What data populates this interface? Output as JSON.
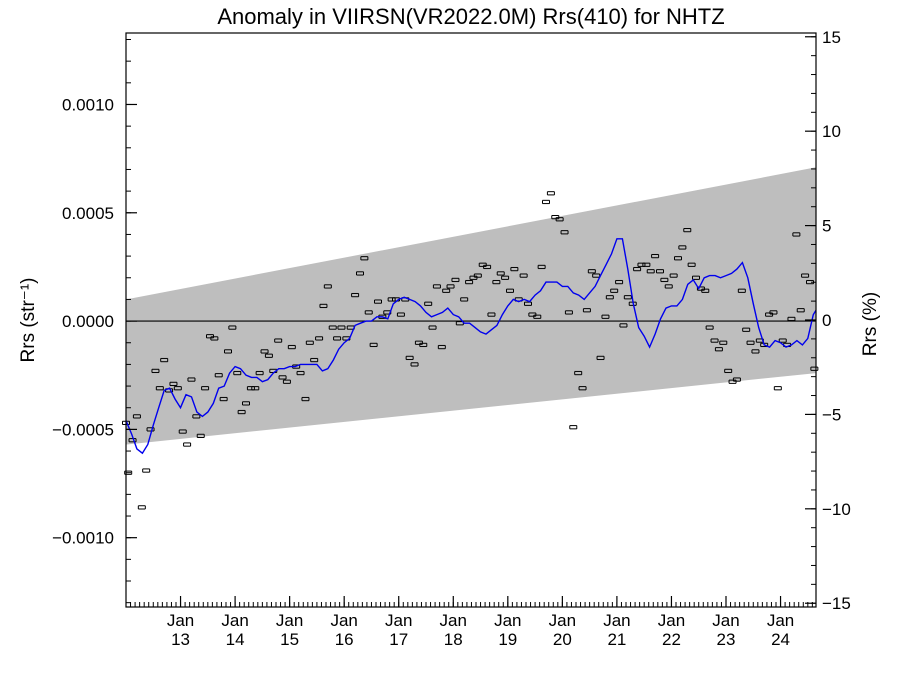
{
  "chart_data": {
    "type": "scatter",
    "title": "Anomaly in VIIRSN(VR2022.0M) Rrs(410) for NHTZ",
    "ylabel_left": "Rrs (str⁻¹)",
    "ylabel_right": "Rrs (%)",
    "xlabel": "",
    "ylim": [
      -0.00132,
      0.00133
    ],
    "ylim_right": [
      -15.2,
      15.2
    ],
    "xlim": [
      2012.0,
      2024.65
    ],
    "left_ticks": [
      {
        "v": 0.001,
        "label": "0.0010"
      },
      {
        "v": 0.0005,
        "label": "0.0005"
      },
      {
        "v": 0.0,
        "label": "0.0000"
      },
      {
        "v": -0.0005,
        "label": "−0.0005"
      },
      {
        "v": -0.001,
        "label": "−0.0010"
      }
    ],
    "right_ticks": [
      {
        "v": 15,
        "label": "15"
      },
      {
        "v": 10,
        "label": "10"
      },
      {
        "v": 5,
        "label": "5"
      },
      {
        "v": 0,
        "label": "0"
      },
      {
        "v": -5,
        "label": "−5"
      },
      {
        "v": -10,
        "label": "−10"
      },
      {
        "v": -15,
        "label": "−15"
      }
    ],
    "x_ticks": [
      {
        "v": 2013.0,
        "label1": "Jan",
        "label2": "13"
      },
      {
        "v": 2014.0,
        "label1": "Jan",
        "label2": "14"
      },
      {
        "v": 2015.0,
        "label1": "Jan",
        "label2": "15"
      },
      {
        "v": 2016.0,
        "label1": "Jan",
        "label2": "16"
      },
      {
        "v": 2017.0,
        "label1": "Jan",
        "label2": "17"
      },
      {
        "v": 2018.0,
        "label1": "Jan",
        "label2": "18"
      },
      {
        "v": 2019.0,
        "label1": "Jan",
        "label2": "19"
      },
      {
        "v": 2020.0,
        "label1": "Jan",
        "label2": "20"
      },
      {
        "v": 2021.0,
        "label1": "Jan",
        "label2": "21"
      },
      {
        "v": 2022.0,
        "label1": "Jan",
        "label2": "22"
      },
      {
        "v": 2023.0,
        "label1": "Jan",
        "label2": "23"
      },
      {
        "v": 2024.0,
        "label1": "Jan",
        "label2": "24"
      }
    ],
    "band": {
      "x": [
        2012.0,
        2024.65
      ],
      "upper": [
        0.0001,
        0.00071
      ],
      "lower": [
        -0.00057,
        -0.00024
      ],
      "color": "#bebebe"
    },
    "zero_line": 0.0,
    "colors": {
      "running_mean": "#0000ee",
      "points": "#000000"
    },
    "points": {
      "x": [
        2012.0,
        2012.04,
        2012.12,
        2012.2,
        2012.29,
        2012.37,
        2012.45,
        2012.54,
        2012.62,
        2012.7,
        2012.79,
        2012.87,
        2012.95,
        2013.04,
        2013.12,
        2013.2,
        2013.29,
        2013.37,
        2013.45,
        2013.54,
        2013.62,
        2013.7,
        2013.79,
        2013.87,
        2013.95,
        2014.04,
        2014.12,
        2014.2,
        2014.29,
        2014.37,
        2014.45,
        2014.54,
        2014.62,
        2014.7,
        2014.79,
        2014.87,
        2014.95,
        2015.04,
        2015.12,
        2015.2,
        2015.29,
        2015.37,
        2015.45,
        2015.54,
        2015.62,
        2015.7,
        2015.79,
        2015.87,
        2015.95,
        2016.04,
        2016.12,
        2016.2,
        2016.29,
        2016.37,
        2016.45,
        2016.54,
        2016.62,
        2016.7,
        2016.79,
        2016.87,
        2016.95,
        2017.04,
        2017.12,
        2017.2,
        2017.29,
        2017.37,
        2017.45,
        2017.54,
        2017.62,
        2017.7,
        2017.79,
        2017.87,
        2017.95,
        2018.04,
        2018.12,
        2018.2,
        2018.29,
        2018.37,
        2018.45,
        2018.54,
        2018.62,
        2018.7,
        2018.79,
        2018.87,
        2018.95,
        2019.04,
        2019.12,
        2019.2,
        2019.29,
        2019.37,
        2019.45,
        2019.54,
        2019.62,
        2019.7,
        2019.79,
        2019.87,
        2019.95,
        2020.04,
        2020.12,
        2020.2,
        2020.29,
        2020.37,
        2020.45,
        2020.54,
        2020.62,
        2020.7,
        2020.79,
        2020.87,
        2020.95,
        2021.04,
        2021.12,
        2021.2,
        2021.29,
        2021.37,
        2021.45,
        2021.54,
        2021.62,
        2021.7,
        2021.79,
        2021.87,
        2021.95,
        2022.04,
        2022.12,
        2022.2,
        2022.29,
        2022.37,
        2022.45,
        2022.54,
        2022.62,
        2022.7,
        2022.79,
        2022.87,
        2022.95,
        2023.04,
        2023.12,
        2023.2,
        2023.29,
        2023.37,
        2023.45,
        2023.54,
        2023.62,
        2023.7,
        2023.79,
        2023.87,
        2023.95,
        2024.04,
        2024.12,
        2024.2,
        2024.29,
        2024.37,
        2024.45,
        2024.54,
        2024.62
      ],
      "y": [
        -0.00047,
        -0.0007,
        -0.00055,
        -0.00044,
        -0.00086,
        -0.00069,
        -0.0005,
        -0.00023,
        -0.00031,
        -0.00018,
        -0.00032,
        -0.00029,
        -0.00031,
        -0.00051,
        -0.00057,
        -0.00027,
        -0.00044,
        -0.00053,
        -0.00031,
        -7e-05,
        -8e-05,
        -0.00025,
        -0.00036,
        -0.00014,
        -3e-05,
        -0.00024,
        -0.00042,
        -0.00038,
        -0.00031,
        -0.00031,
        -0.00024,
        -0.00014,
        -0.00016,
        -0.00023,
        -9e-05,
        -0.00026,
        -0.00028,
        -0.00012,
        -0.00021,
        -0.00024,
        -0.00036,
        -0.0001,
        -0.00018,
        -8e-05,
        7e-05,
        0.00016,
        -3e-05,
        -8e-05,
        -3e-05,
        -8e-05,
        -3e-05,
        0.00012,
        0.00022,
        0.00029,
        4e-05,
        -0.00011,
        9e-05,
        2e-05,
        4e-05,
        0.0001,
        0.0001,
        3e-05,
        0.0001,
        -0.00017,
        -0.0002,
        -0.0001,
        -0.00011,
        8e-05,
        -3e-05,
        0.00016,
        -0.00012,
        0.00014,
        0.00016,
        0.00019,
        -1e-05,
        0.0001,
        0.00018,
        0.0002,
        0.00021,
        0.00026,
        0.00025,
        3e-05,
        0.00018,
        0.00022,
        0.0002,
        0.00014,
        0.00024,
        0.0001,
        0.00021,
        8e-05,
        3e-05,
        2e-05,
        0.00025,
        0.00055,
        0.00059,
        0.00048,
        0.00047,
        0.00041,
        4e-05,
        -0.00049,
        -0.00024,
        -0.00031,
        5e-05,
        0.00023,
        0.00021,
        -0.00017,
        2e-05,
        0.00011,
        0.00014,
        0.00018,
        -2e-05,
        0.00011,
        8e-05,
        0.00024,
        0.00026,
        0.00026,
        0.00023,
        0.0003,
        0.00023,
        0.00019,
        0.00016,
        0.00021,
        0.00029,
        0.00034,
        0.00042,
        0.00026,
        0.0002,
        0.00015,
        0.00014,
        -3e-05,
        -9e-05,
        -0.00013,
        -0.0001,
        -0.00023,
        -0.00028,
        -0.00027,
        0.00014,
        -4e-05,
        -0.0001,
        -0.00014,
        -9e-05,
        -0.00011,
        3e-05,
        4e-05,
        -0.00031,
        -9e-05,
        -0.00011,
        1e-05,
        0.0004,
        5e-05,
        0.00021,
        0.00018,
        -0.00022
      ],
      "err": 7.5e-06
    },
    "running_mean": {
      "x": [
        2012.0,
        2012.1,
        2012.2,
        2012.3,
        2012.4,
        2012.5,
        2012.6,
        2012.7,
        2012.8,
        2012.9,
        2013.0,
        2013.1,
        2013.2,
        2013.3,
        2013.4,
        2013.5,
        2013.6,
        2013.7,
        2013.8,
        2013.9,
        2014.0,
        2014.1,
        2014.2,
        2014.3,
        2014.4,
        2014.5,
        2014.6,
        2014.7,
        2014.8,
        2014.9,
        2015.0,
        2015.1,
        2015.2,
        2015.3,
        2015.4,
        2015.5,
        2015.6,
        2015.7,
        2015.8,
        2015.9,
        2016.0,
        2016.1,
        2016.2,
        2016.3,
        2016.4,
        2016.5,
        2016.6,
        2016.7,
        2016.8,
        2016.9,
        2017.0,
        2017.1,
        2017.2,
        2017.3,
        2017.4,
        2017.5,
        2017.6,
        2017.7,
        2017.8,
        2017.9,
        2018.0,
        2018.1,
        2018.2,
        2018.3,
        2018.4,
        2018.5,
        2018.6,
        2018.7,
        2018.8,
        2018.9,
        2019.0,
        2019.1,
        2019.2,
        2019.3,
        2019.4,
        2019.5,
        2019.6,
        2019.7,
        2019.8,
        2019.9,
        2020.0,
        2020.1,
        2020.2,
        2020.3,
        2020.4,
        2020.5,
        2020.6,
        2020.7,
        2020.8,
        2020.9,
        2021.0,
        2021.1,
        2021.2,
        2021.3,
        2021.4,
        2021.5,
        2021.6,
        2021.7,
        2021.8,
        2021.9,
        2022.0,
        2022.1,
        2022.2,
        2022.3,
        2022.4,
        2022.5,
        2022.6,
        2022.7,
        2022.8,
        2022.9,
        2023.0,
        2023.1,
        2023.2,
        2023.3,
        2023.4,
        2023.5,
        2023.6,
        2023.7,
        2023.8,
        2023.9,
        2024.0,
        2024.1,
        2024.2,
        2024.3,
        2024.4,
        2024.5,
        2024.6,
        2024.65
      ],
      "y": [
        -0.00046,
        -0.00052,
        -0.00059,
        -0.00061,
        -0.00057,
        -0.00048,
        -0.0004,
        -0.00032,
        -0.00031,
        -0.00036,
        -0.0004,
        -0.00034,
        -0.00035,
        -0.00042,
        -0.00044,
        -0.00042,
        -0.00038,
        -0.00031,
        -0.0003,
        -0.00024,
        -0.00021,
        -0.00022,
        -0.00025,
        -0.00026,
        -0.00026,
        -0.00028,
        -0.00027,
        -0.00024,
        -0.00022,
        -0.00022,
        -0.00021,
        -0.00021,
        -0.0002,
        -0.0002,
        -0.0002,
        -0.0002,
        -0.00023,
        -0.00022,
        -0.00018,
        -0.00013,
        -0.0001,
        -8e-05,
        -2e-05,
        -1e-05,
        0.0,
        0.0,
        2e-05,
        2e-05,
        1e-05,
        8e-05,
        0.0001,
        0.00011,
        0.0001,
        9e-05,
        7e-05,
        4e-05,
        2e-05,
        3e-05,
        4e-05,
        6e-05,
        3e-05,
        2e-05,
        -1e-05,
        -1e-05,
        -3e-05,
        -5e-05,
        -6e-05,
        -4e-05,
        -2e-05,
        3e-05,
        7e-05,
        0.0001,
        9e-05,
        0.0001,
        9e-05,
        0.00012,
        0.00014,
        0.00018,
        0.00018,
        0.00018,
        0.00016,
        0.00016,
        0.00013,
        0.00012,
        0.0001,
        0.00013,
        0.00016,
        0.00021,
        0.00026,
        0.00031,
        0.00038,
        0.00038,
        0.00024,
        8e-05,
        -3e-05,
        -7e-05,
        -0.00012,
        -6e-05,
        1e-05,
        6e-05,
        7e-05,
        7e-05,
        0.0001,
        0.00017,
        0.00019,
        0.00015,
        0.0002,
        0.00021,
        0.00021,
        0.0002,
        0.00021,
        0.00022,
        0.00024,
        0.00027,
        0.0002,
        8e-05,
        -3e-05,
        -0.00011,
        -0.00012,
        -9e-05,
        -0.0001,
        -0.00012,
        -0.00011,
        -9e-05,
        -0.00011,
        -8e-05,
        3e-05,
        5e-05
      ]
    }
  }
}
